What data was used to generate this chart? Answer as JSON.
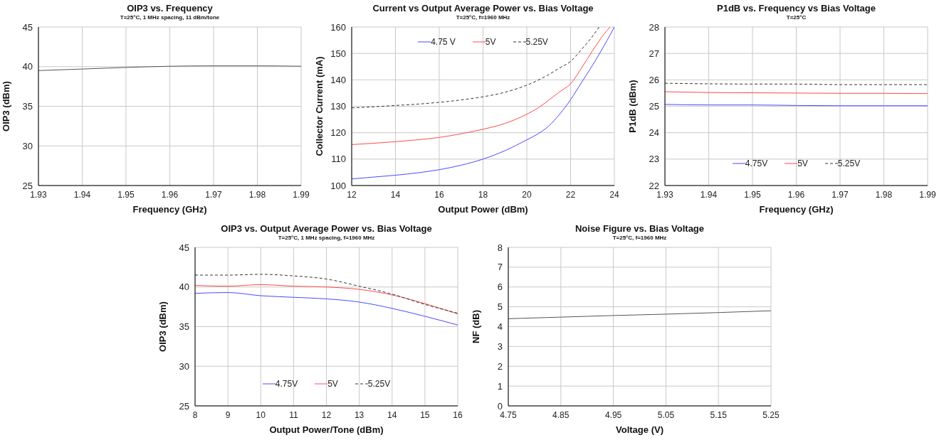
{
  "chart_data": [
    {
      "type": "line",
      "title": "OIP3 vs. Frequency",
      "subtitle": "T=25°C, 1 MHz spacing, 11 dBm/tone",
      "xlabel": "Frequency (GHz)",
      "ylabel": "OIP3 (dBm)",
      "x": [
        1.93,
        1.94,
        1.95,
        1.96,
        1.97,
        1.98,
        1.99
      ],
      "series": [
        {
          "color": "#555555",
          "values": [
            39.5,
            39.7,
            39.9,
            40.05,
            40.1,
            40.1,
            40.05
          ]
        }
      ],
      "xlim": [
        1.93,
        1.99
      ],
      "xticks": [
        {
          "value": 1.93,
          "label": "1.93"
        },
        {
          "value": 1.94,
          "label": "1.94"
        },
        {
          "value": 1.95,
          "label": "1.95"
        },
        {
          "value": 1.96,
          "label": "1.96"
        },
        {
          "value": 1.97,
          "label": "1.97"
        },
        {
          "value": 1.98,
          "label": "1.98"
        },
        {
          "value": 1.99,
          "label": "1.99"
        }
      ],
      "ylim": [
        25,
        45
      ],
      "yticks": [
        25,
        30,
        35,
        40,
        45
      ],
      "grid": true,
      "legend": false,
      "marker": "none"
    },
    {
      "type": "line",
      "title": "Current vs Output Average Power vs. Bias Voltage",
      "subtitle": "T=25°C, f=1960 MHz",
      "xlabel": "Output Power (dBm)",
      "ylabel": "Collector Current (mA)",
      "series": [
        {
          "name": "4.75 V",
          "color": "#4a4aff",
          "x": [
            12,
            13,
            14,
            15,
            16,
            17,
            18,
            19,
            20,
            20.5,
            21,
            21.5,
            22,
            22.5,
            23,
            23.5,
            24
          ],
          "values": [
            102.5,
            103.2,
            103.9,
            104.8,
            106,
            107.7,
            110,
            113.2,
            117.3,
            119.5,
            122.5,
            127,
            132.5,
            139,
            145.5,
            152.5,
            160
          ]
        },
        {
          "name": "5V",
          "color": "#ff4a4a",
          "x": [
            12,
            13,
            14,
            15,
            16,
            17,
            18,
            19,
            20,
            20.5,
            21,
            21.5,
            22,
            22.5,
            23,
            23.5,
            23.8
          ],
          "values": [
            115.5,
            116,
            116.6,
            117.3,
            118.2,
            119.6,
            121.3,
            123.5,
            127,
            129.3,
            132.3,
            135.5,
            138.5,
            144.5,
            151,
            157,
            160
          ]
        },
        {
          "name": "5.25V",
          "color": "#333333",
          "line_style": "dashed",
          "x": [
            12,
            13,
            14,
            15,
            16,
            17,
            18,
            19,
            20,
            20.5,
            21,
            21.5,
            22,
            22.5,
            23,
            23.3
          ],
          "values": [
            129.4,
            129.8,
            130.3,
            130.8,
            131.5,
            132.4,
            133.6,
            135.3,
            138,
            139.8,
            142,
            144.5,
            147,
            151.5,
            156.5,
            160
          ]
        }
      ],
      "xlim": [
        12,
        24
      ],
      "xticks": [
        12,
        14,
        16,
        18,
        20,
        22,
        24
      ],
      "ylim": [
        100,
        160
      ],
      "yticks": [
        100,
        110,
        120,
        130,
        140,
        150,
        160
      ],
      "grid": true,
      "legend": "top",
      "marker": "none"
    },
    {
      "type": "line",
      "title": "P1dB vs. Frequency vs Bias Voltage",
      "subtitle": "T=25°C",
      "xlabel": "Frequency (GHz)",
      "ylabel": "P1dB (dBm)",
      "x": [
        1.93,
        1.94,
        1.95,
        1.96,
        1.97,
        1.98,
        1.99
      ],
      "series": [
        {
          "name": "4.75V",
          "color": "#4a4aff",
          "values": [
            25.07,
            25.05,
            25.05,
            25.03,
            25.02,
            25.02,
            25.02
          ]
        },
        {
          "name": "5V",
          "color": "#ff4a4a",
          "values": [
            25.55,
            25.52,
            25.51,
            25.5,
            25.49,
            25.49,
            25.48
          ]
        },
        {
          "name": "5.25V",
          "color": "#333333",
          "line_style": "dashed",
          "values": [
            25.87,
            25.85,
            25.84,
            25.84,
            25.82,
            25.82,
            25.82
          ]
        }
      ],
      "xlim": [
        1.93,
        1.99
      ],
      "xticks": [
        {
          "value": 1.93,
          "label": "1.93"
        },
        {
          "value": 1.94,
          "label": "1.94"
        },
        {
          "value": 1.95,
          "label": "1.95"
        },
        {
          "value": 1.96,
          "label": "1.96"
        },
        {
          "value": 1.97,
          "label": "1.97"
        },
        {
          "value": 1.98,
          "label": "1.98"
        },
        {
          "value": 1.99,
          "label": "1.99"
        }
      ],
      "ylim": [
        22,
        28
      ],
      "yticks": [
        22,
        23,
        24,
        25,
        26,
        27,
        28
      ],
      "grid": true,
      "legend": "bottom",
      "marker": "none"
    },
    {
      "type": "line",
      "title": "OIP3 vs. Output Average Power vs. Bias Voltage",
      "subtitle": "T=25°C, 1 MHz spacing, f=1960 MHz",
      "xlabel": "Output Power/Tone (dBm)",
      "ylabel": "OIP3 (dBm)",
      "x": [
        8,
        9,
        10,
        11,
        12,
        13,
        14,
        15,
        16
      ],
      "series": [
        {
          "name": "4.75V",
          "color": "#4a4aff",
          "values": [
            39.2,
            39.3,
            38.9,
            38.7,
            38.5,
            38.1,
            37.3,
            36.3,
            35.2
          ]
        },
        {
          "name": "5V",
          "color": "#ff4a4a",
          "values": [
            40.2,
            40.1,
            40.3,
            40.1,
            40,
            39.7,
            39,
            37.9,
            36.6
          ]
        },
        {
          "name": "5.25V",
          "color": "#333333",
          "line_style": "dashed",
          "values": [
            41.5,
            41.5,
            41.6,
            41.4,
            41,
            40.1,
            39.1,
            37.8,
            36.7
          ]
        }
      ],
      "xlim": [
        8,
        16
      ],
      "xticks": [
        8,
        9,
        10,
        11,
        12,
        13,
        14,
        15,
        16
      ],
      "ylim": [
        25,
        45
      ],
      "yticks": [
        25,
        30,
        35,
        40,
        45
      ],
      "grid": true,
      "legend": "bottom",
      "marker": "none"
    },
    {
      "type": "line",
      "title": "Noise Figure vs. Bias Voltage",
      "subtitle": "T=25°C, f=1960 MHz",
      "xlabel": "Voltage (V)",
      "ylabel": "NF (dB)",
      "x": [
        4.75,
        4.85,
        4.95,
        5.05,
        5.15,
        5.25
      ],
      "series": [
        {
          "color": "#555555",
          "values": [
            4.4,
            4.48,
            4.56,
            4.63,
            4.71,
            4.8
          ]
        }
      ],
      "xlim": [
        4.75,
        5.25
      ],
      "xticks": [
        {
          "value": 4.75,
          "label": "4.75"
        },
        {
          "value": 4.85,
          "label": "4.85"
        },
        {
          "value": 4.95,
          "label": "4.95"
        },
        {
          "value": 5.05,
          "label": "5.05"
        },
        {
          "value": 5.15,
          "label": "5.15"
        },
        {
          "value": 5.25,
          "label": "5.25"
        }
      ],
      "ylim": [
        0,
        8
      ],
      "yticks": [
        0,
        1,
        2,
        3,
        4,
        5,
        6,
        7,
        8
      ],
      "grid": true,
      "legend": false,
      "marker": "none"
    }
  ]
}
